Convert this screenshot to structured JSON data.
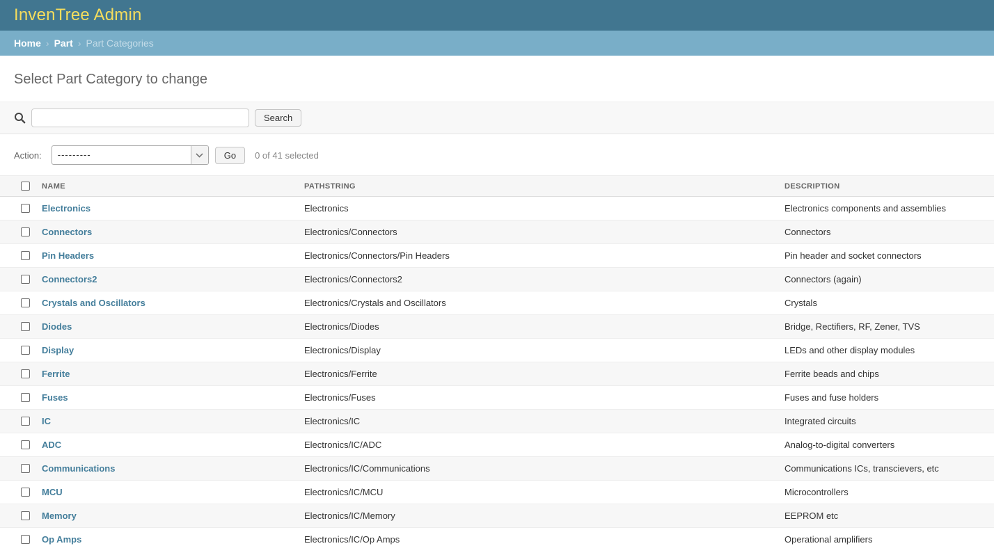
{
  "header": {
    "title": "InvenTree Admin"
  },
  "breadcrumb": {
    "separator": "›",
    "items": [
      {
        "label": "Home",
        "link": true
      },
      {
        "label": "Part",
        "link": true
      },
      {
        "label": "Part Categories",
        "link": false
      }
    ]
  },
  "page": {
    "title": "Select Part Category to change"
  },
  "search": {
    "value": "",
    "placeholder": "",
    "button_label": "Search"
  },
  "action_bar": {
    "label": "Action:",
    "selected_option": "---------",
    "go_label": "Go",
    "selection_status": "0 of 41 selected"
  },
  "table": {
    "columns": [
      "NAME",
      "PATHSTRING",
      "DESCRIPTION"
    ],
    "rows": [
      {
        "name": "Electronics",
        "pathstring": "Electronics",
        "description": "Electronics components and assemblies"
      },
      {
        "name": "Connectors",
        "pathstring": "Electronics/Connectors",
        "description": "Connectors"
      },
      {
        "name": "Pin Headers",
        "pathstring": "Electronics/Connectors/Pin Headers",
        "description": "Pin header and socket connectors"
      },
      {
        "name": "Connectors2",
        "pathstring": "Electronics/Connectors2",
        "description": "Connectors (again)"
      },
      {
        "name": "Crystals and Oscillators",
        "pathstring": "Electronics/Crystals and Oscillators",
        "description": "Crystals"
      },
      {
        "name": "Diodes",
        "pathstring": "Electronics/Diodes",
        "description": "Bridge, Rectifiers, RF, Zener, TVS"
      },
      {
        "name": "Display",
        "pathstring": "Electronics/Display",
        "description": "LEDs and other display modules"
      },
      {
        "name": "Ferrite",
        "pathstring": "Electronics/Ferrite",
        "description": "Ferrite beads and chips"
      },
      {
        "name": "Fuses",
        "pathstring": "Electronics/Fuses",
        "description": "Fuses and fuse holders"
      },
      {
        "name": "IC",
        "pathstring": "Electronics/IC",
        "description": "Integrated circuits"
      },
      {
        "name": "ADC",
        "pathstring": "Electronics/IC/ADC",
        "description": "Analog-to-digital converters"
      },
      {
        "name": "Communications",
        "pathstring": "Electronics/IC/Communications",
        "description": "Communications ICs, transcievers, etc"
      },
      {
        "name": "MCU",
        "pathstring": "Electronics/IC/MCU",
        "description": "Microcontrollers"
      },
      {
        "name": "Memory",
        "pathstring": "Electronics/IC/Memory",
        "description": "EEPROM etc"
      },
      {
        "name": "Op Amps",
        "pathstring": "Electronics/IC/Op Amps",
        "description": "Operational amplifiers"
      }
    ]
  },
  "colors": {
    "header_bg": "#417690",
    "header_title": "#f5dd5d",
    "breadcrumb_bg": "#79aec8",
    "link": "#447e9b",
    "row_stripe": "#f7f7f7"
  }
}
